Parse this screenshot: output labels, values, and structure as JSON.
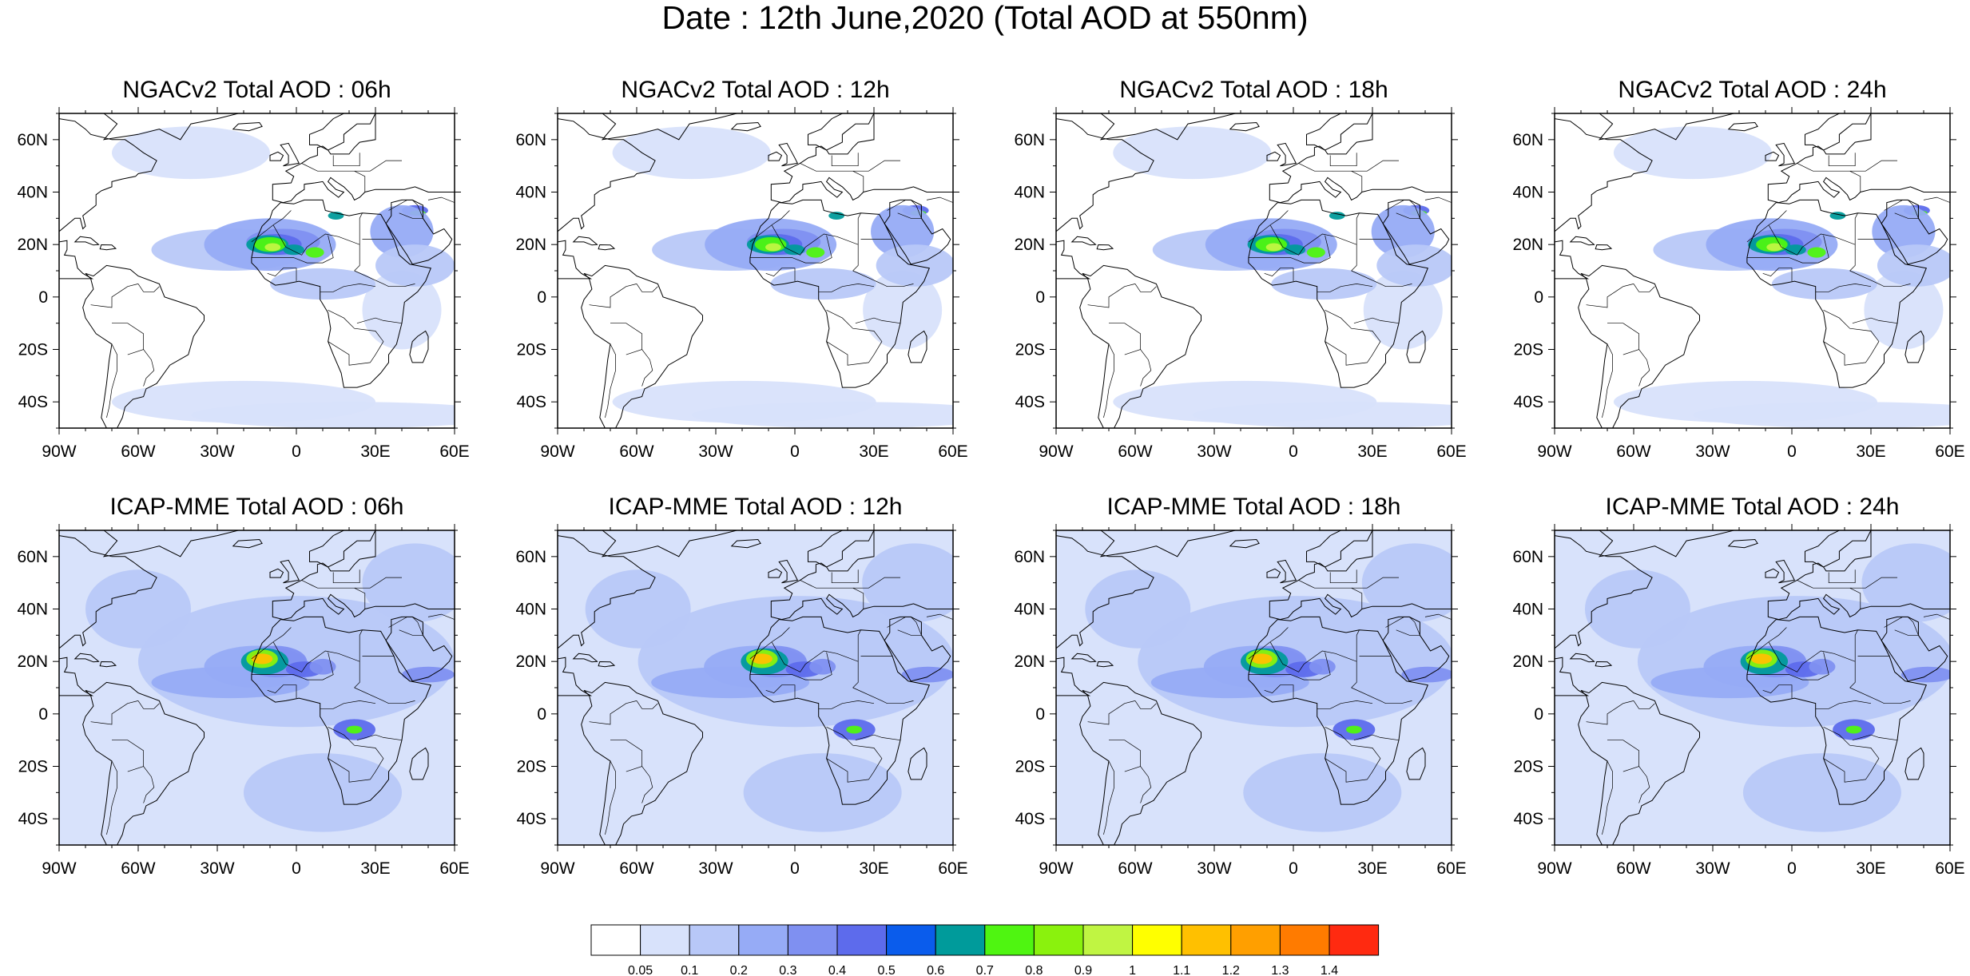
{
  "title": "Date : 12th June,2020 (Total AOD at 550nm)",
  "panels": [
    {
      "row": 0,
      "col": 0,
      "title": "NGACv2 Total AOD : 06h"
    },
    {
      "row": 0,
      "col": 1,
      "title": "NGACv2 Total AOD : 12h"
    },
    {
      "row": 0,
      "col": 2,
      "title": "NGACv2 Total AOD : 18h"
    },
    {
      "row": 0,
      "col": 3,
      "title": "NGACv2 Total AOD : 24h"
    },
    {
      "row": 1,
      "col": 0,
      "title": "ICAP-MME Total AOD : 06h"
    },
    {
      "row": 1,
      "col": 1,
      "title": "ICAP-MME Total AOD : 12h"
    },
    {
      "row": 1,
      "col": 2,
      "title": "ICAP-MME Total AOD : 18h"
    },
    {
      "row": 1,
      "col": 3,
      "title": "ICAP-MME Total AOD : 24h"
    }
  ],
  "map_extent": {
    "lon": [
      -90,
      60
    ],
    "lat": [
      -50,
      70
    ]
  },
  "lat_ticks": [
    {
      "value": 60,
      "label": "60N"
    },
    {
      "value": 40,
      "label": "40N"
    },
    {
      "value": 20,
      "label": "20N"
    },
    {
      "value": 0,
      "label": "0"
    },
    {
      "value": -20,
      "label": "20S"
    },
    {
      "value": -40,
      "label": "40S"
    }
  ],
  "lon_ticks": [
    {
      "value": -90,
      "label": "90W"
    },
    {
      "value": -60,
      "label": "60W"
    },
    {
      "value": -30,
      "label": "30W"
    },
    {
      "value": 0,
      "label": "0"
    },
    {
      "value": 30,
      "label": "30E"
    },
    {
      "value": 60,
      "label": "60E"
    }
  ],
  "colorbar": {
    "colors": [
      "#ffffff",
      "#d8e2fb",
      "#b8c8f8",
      "#96abf6",
      "#7f90f1",
      "#5d6bec",
      "#0a5cec",
      "#009b9b",
      "#4ff511",
      "#8af20d",
      "#c0f542",
      "#ffff00",
      "#ffc000",
      "#ff9f00",
      "#ff7b00",
      "#ff2a10"
    ],
    "labels": [
      "0.05",
      "0.1",
      "0.2",
      "0.3",
      "0.4",
      "0.5",
      "0.6",
      "0.7",
      "0.8",
      "0.9",
      "1",
      "1.1",
      "1.2",
      "1.3",
      "1.4"
    ]
  }
}
